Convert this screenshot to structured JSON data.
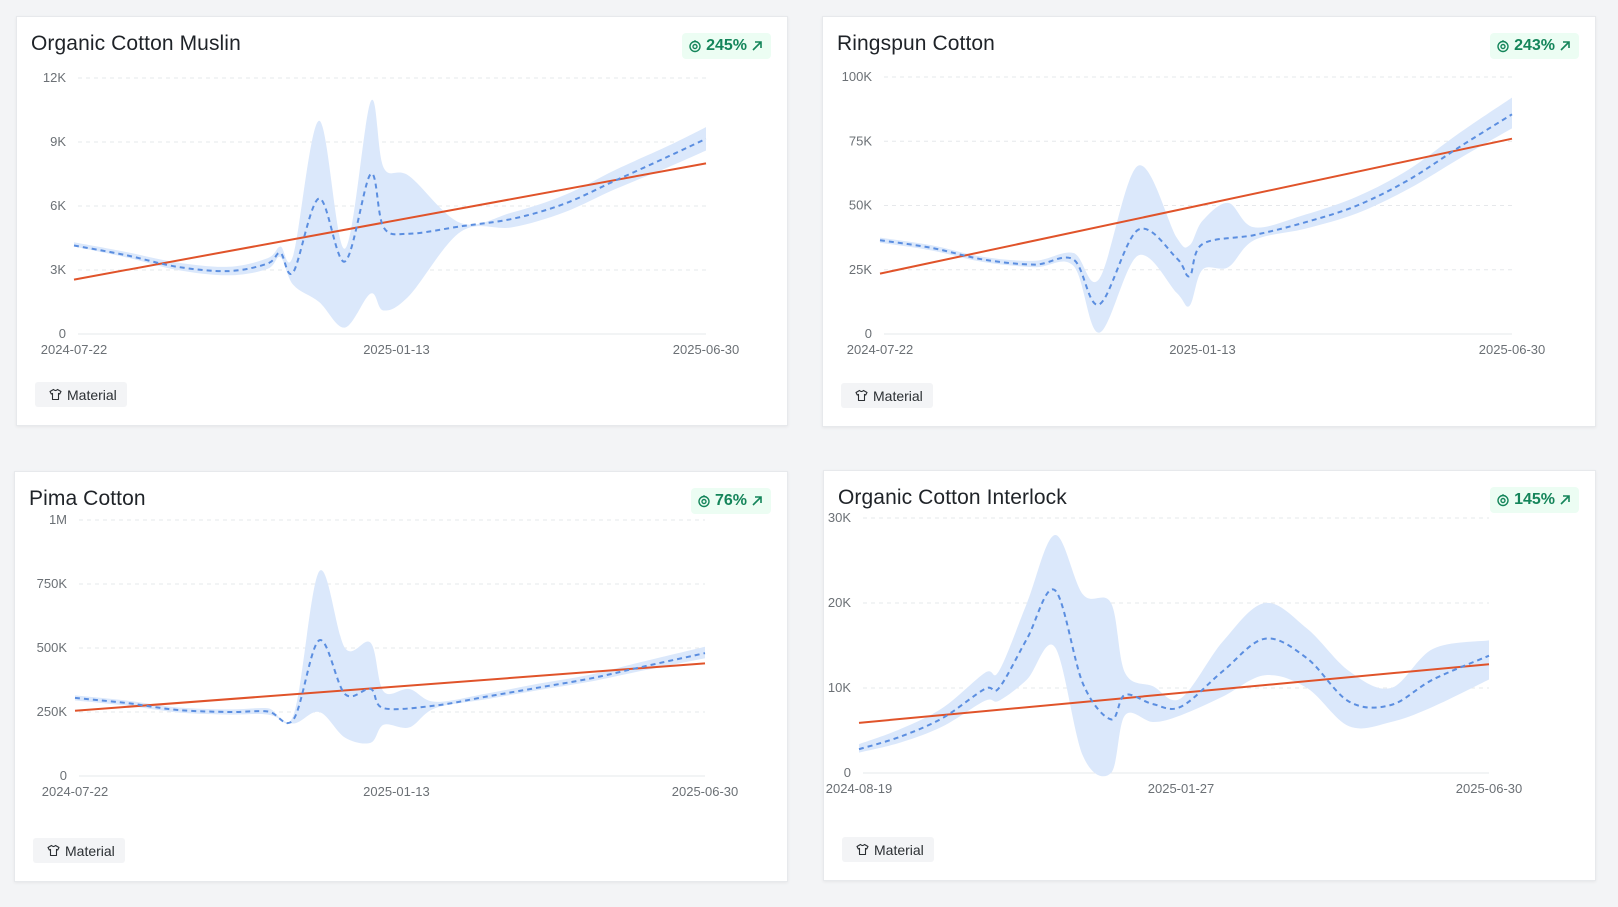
{
  "colors": {
    "trend_line": "#e0532a",
    "forecast_line": "#5b8ee0",
    "confidence_band": "#dbe8fb",
    "badge_text": "#14855a",
    "badge_bg": "#ecfdf3",
    "grid": "#e6e8eb",
    "axis_text": "#6b7075"
  },
  "cards": [
    {
      "title": "Organic Cotton Muslin",
      "badge": {
        "icon": "growth-icon",
        "value": "245%",
        "arrow": "arrow-up-right-icon"
      },
      "tag": {
        "icon": "shirt-icon",
        "label": "Material"
      }
    },
    {
      "title": "Ringspun Cotton",
      "badge": {
        "icon": "growth-icon",
        "value": "243%",
        "arrow": "arrow-up-right-icon"
      },
      "tag": {
        "icon": "shirt-icon",
        "label": "Material"
      }
    },
    {
      "title": "Pima Cotton",
      "badge": {
        "icon": "growth-icon",
        "value": "76%",
        "arrow": "arrow-up-right-icon"
      },
      "tag": {
        "icon": "shirt-icon",
        "label": "Material"
      }
    },
    {
      "title": "Organic Cotton Interlock",
      "badge": {
        "icon": "growth-icon",
        "value": "145%",
        "arrow": "arrow-up-right-icon"
      },
      "tag": {
        "icon": "shirt-icon",
        "label": "Material"
      }
    }
  ],
  "chart_data": [
    {
      "type": "line",
      "x_start": "2024-07-22",
      "x_end": "2025-06-30",
      "x_ticks": [
        "2024-07-22",
        "2025-01-13",
        "2025-06-30"
      ],
      "y_ticks": [
        0,
        3000,
        6000,
        9000,
        12000
      ],
      "y_tick_labels": [
        "0",
        "3K",
        "6K",
        "9K",
        "12K"
      ],
      "ylim": [
        0,
        12000
      ],
      "grid": true,
      "series": [
        {
          "role": "forecast",
          "points": [
            [
              "2024-07-22",
              4150
            ],
            [
              "2024-08-19",
              3700
            ],
            [
              "2024-09-16",
              3150
            ],
            [
              "2024-10-14",
              2950
            ],
            [
              "2024-11-04",
              3300
            ],
            [
              "2024-11-11",
              3800
            ],
            [
              "2024-11-18",
              2900
            ],
            [
              "2024-12-02",
              6350
            ],
            [
              "2024-12-16",
              3400
            ],
            [
              "2024-12-30",
              7500
            ],
            [
              "2025-01-06",
              5000
            ],
            [
              "2025-01-20",
              4700
            ],
            [
              "2025-02-17",
              5050
            ],
            [
              "2025-03-17",
              5400
            ],
            [
              "2025-04-14",
              6100
            ],
            [
              "2025-05-12",
              7200
            ],
            [
              "2025-06-09",
              8300
            ],
            [
              "2025-06-30",
              9150
            ]
          ],
          "band": [
            [
              "2024-07-22",
              4100,
              4300
            ],
            [
              "2024-08-19",
              3600,
              3850
            ],
            [
              "2024-09-16",
              3000,
              3350
            ],
            [
              "2024-10-14",
              2750,
              3150
            ],
            [
              "2024-11-04",
              3050,
              3550
            ],
            [
              "2024-11-11",
              3600,
              4100
            ],
            [
              "2024-11-18",
              2300,
              3700
            ],
            [
              "2024-12-02",
              1500,
              10000
            ],
            [
              "2024-12-16",
              300,
              4000
            ],
            [
              "2024-12-30",
              1900,
              10900
            ],
            [
              "2025-01-06",
              1100,
              7800
            ],
            [
              "2025-01-20",
              1800,
              7400
            ],
            [
              "2025-02-17",
              4800,
              5200
            ],
            [
              "2025-03-17",
              5000,
              5700
            ],
            [
              "2025-04-14",
              5700,
              6500
            ],
            [
              "2025-05-12",
              6800,
              7700
            ],
            [
              "2025-06-09",
              7800,
              8800
            ],
            [
              "2025-06-30",
              8600,
              9700
            ]
          ]
        },
        {
          "role": "trend",
          "points": [
            [
              "2024-07-22",
              2550
            ],
            [
              "2025-06-30",
              8000
            ]
          ]
        }
      ]
    },
    {
      "type": "line",
      "x_start": "2024-07-22",
      "x_end": "2025-06-30",
      "x_ticks": [
        "2024-07-22",
        "2025-01-13",
        "2025-06-30"
      ],
      "y_ticks": [
        0,
        25000,
        50000,
        75000,
        100000
      ],
      "y_tick_labels": [
        "0",
        "25K",
        "50K",
        "75K",
        "100K"
      ],
      "ylim": [
        0,
        100000
      ],
      "grid": true,
      "series": [
        {
          "role": "forecast",
          "points": [
            [
              "2024-07-22",
              36500
            ],
            [
              "2024-08-19",
              33500
            ],
            [
              "2024-09-16",
              29000
            ],
            [
              "2024-10-14",
              27000
            ],
            [
              "2024-11-04",
              29000
            ],
            [
              "2024-11-18",
              11500
            ],
            [
              "2024-12-09",
              40500
            ],
            [
              "2024-12-30",
              29500
            ],
            [
              "2025-01-06",
              22500
            ],
            [
              "2025-01-13",
              35000
            ],
            [
              "2025-02-10",
              38500
            ],
            [
              "2025-03-10",
              43500
            ],
            [
              "2025-04-07",
              50000
            ],
            [
              "2025-05-05",
              60000
            ],
            [
              "2025-06-02",
              73000
            ],
            [
              "2025-06-30",
              85500
            ]
          ],
          "band": [
            [
              "2024-07-22",
              35500,
              37500
            ],
            [
              "2024-08-19",
              32500,
              34500
            ],
            [
              "2024-09-16",
              28000,
              30000
            ],
            [
              "2024-10-14",
              26000,
              28500
            ],
            [
              "2024-11-04",
              26500,
              31500
            ],
            [
              "2024-11-18",
              500,
              21500
            ],
            [
              "2024-12-09",
              30500,
              65500
            ],
            [
              "2024-12-30",
              16000,
              37500
            ],
            [
              "2025-01-06",
              11000,
              34500
            ],
            [
              "2025-01-13",
              25000,
              44000
            ],
            [
              "2025-01-27",
              26000,
              51000
            ],
            [
              "2025-02-10",
              36500,
              41500
            ],
            [
              "2025-03-10",
              41000,
              46500
            ],
            [
              "2025-04-07",
              47000,
              53500
            ],
            [
              "2025-05-05",
              56500,
              64000
            ],
            [
              "2025-06-02",
              68500,
              78500
            ],
            [
              "2025-06-30",
              80000,
              92000
            ]
          ]
        },
        {
          "role": "trend",
          "points": [
            [
              "2024-07-22",
              23500
            ],
            [
              "2025-06-30",
              76000
            ]
          ]
        }
      ]
    },
    {
      "type": "line",
      "x_start": "2024-07-22",
      "x_end": "2025-06-30",
      "x_ticks": [
        "2024-07-22",
        "2025-01-13",
        "2025-06-30"
      ],
      "y_ticks": [
        0,
        250000,
        500000,
        750000,
        1000000
      ],
      "y_tick_labels": [
        "0",
        "250K",
        "500K",
        "750K",
        "1M"
      ],
      "ylim": [
        0,
        1000000
      ],
      "grid": true,
      "series": [
        {
          "role": "forecast",
          "points": [
            [
              "2024-07-22",
              305000
            ],
            [
              "2024-08-19",
              285000
            ],
            [
              "2024-09-16",
              258000
            ],
            [
              "2024-10-14",
              250000
            ],
            [
              "2024-11-04",
              252000
            ],
            [
              "2024-11-18",
              222000
            ],
            [
              "2024-12-02",
              530000
            ],
            [
              "2024-12-16",
              320000
            ],
            [
              "2024-12-30",
              340000
            ],
            [
              "2025-01-06",
              265000
            ],
            [
              "2025-02-03",
              275000
            ],
            [
              "2025-03-03",
              310000
            ],
            [
              "2025-03-31",
              345000
            ],
            [
              "2025-04-28",
              380000
            ],
            [
              "2025-05-26",
              425000
            ],
            [
              "2025-06-30",
              480000
            ]
          ],
          "band": [
            [
              "2024-07-22",
              295000,
              315000
            ],
            [
              "2024-08-19",
              275000,
              295000
            ],
            [
              "2024-09-16",
              248000,
              268000
            ],
            [
              "2024-10-14",
              240000,
              260000
            ],
            [
              "2024-11-04",
              240000,
              265000
            ],
            [
              "2024-11-18",
              205000,
              240000
            ],
            [
              "2024-12-02",
              250000,
              800000
            ],
            [
              "2024-12-16",
              150000,
              500000
            ],
            [
              "2024-12-30",
              130000,
              520000
            ],
            [
              "2025-01-06",
              200000,
              330000
            ],
            [
              "2025-01-20",
              190000,
              340000
            ],
            [
              "2025-02-03",
              265000,
              290000
            ],
            [
              "2025-03-03",
              300000,
              322000
            ],
            [
              "2025-03-31",
              335000,
              360000
            ],
            [
              "2025-04-28",
              368000,
              395000
            ],
            [
              "2025-05-26",
              410000,
              445000
            ],
            [
              "2025-06-30",
              460000,
              505000
            ]
          ]
        },
        {
          "role": "trend",
          "points": [
            [
              "2024-07-22",
              255000
            ],
            [
              "2025-06-30",
              440000
            ]
          ]
        }
      ]
    },
    {
      "type": "line",
      "x_start": "2024-08-19",
      "x_end": "2025-06-30",
      "x_ticks": [
        "2024-08-19",
        "2025-01-27",
        "2025-06-30"
      ],
      "y_ticks": [
        0,
        10000,
        20000,
        30000
      ],
      "y_tick_labels": [
        "0",
        "10K",
        "20K",
        "30K"
      ],
      "ylim": [
        0,
        30000
      ],
      "grid": true,
      "series": [
        {
          "role": "forecast",
          "points": [
            [
              "2024-08-19",
              2800
            ],
            [
              "2024-09-09",
              4300
            ],
            [
              "2024-09-30",
              6500
            ],
            [
              "2024-10-21",
              9900
            ],
            [
              "2024-10-28",
              10000
            ],
            [
              "2024-11-11",
              15800
            ],
            [
              "2024-11-25",
              21500
            ],
            [
              "2024-12-09",
              10500
            ],
            [
              "2024-12-23",
              6300
            ],
            [
              "2024-12-30",
              9200
            ],
            [
              "2025-01-13",
              8100
            ],
            [
              "2025-01-27",
              7800
            ],
            [
              "2025-02-17",
              12000
            ],
            [
              "2025-03-10",
              15800
            ],
            [
              "2025-03-31",
              13500
            ],
            [
              "2025-04-21",
              8400
            ],
            [
              "2025-05-12",
              8000
            ],
            [
              "2025-06-02",
              11000
            ],
            [
              "2025-06-30",
              13800
            ]
          ],
          "band": [
            [
              "2024-08-19",
              2400,
              3400
            ],
            [
              "2024-09-09",
              3600,
              5200
            ],
            [
              "2024-09-30",
              5500,
              7700
            ],
            [
              "2024-10-21",
              8500,
              11800
            ],
            [
              "2024-10-28",
              8500,
              12000
            ],
            [
              "2024-11-11",
              11000,
              20000
            ],
            [
              "2024-11-25",
              14800,
              28000
            ],
            [
              "2024-12-09",
              2000,
              21000
            ],
            [
              "2024-12-23",
              0,
              20000
            ],
            [
              "2024-12-30",
              6800,
              11800
            ],
            [
              "2025-01-13",
              6000,
              10200
            ],
            [
              "2025-01-27",
              6800,
              8800
            ],
            [
              "2025-02-17",
              9000,
              15500
            ],
            [
              "2025-03-10",
              11500,
              20000
            ],
            [
              "2025-03-31",
              10000,
              17000
            ],
            [
              "2025-04-21",
              5500,
              12000
            ],
            [
              "2025-05-12",
              6000,
              10000
            ],
            [
              "2025-06-02",
              7800,
              14600
            ],
            [
              "2025-06-30",
              11000,
              15600
            ]
          ]
        },
        {
          "role": "trend",
          "points": [
            [
              "2024-08-19",
              5900
            ],
            [
              "2025-06-30",
              12800
            ]
          ]
        }
      ]
    }
  ]
}
